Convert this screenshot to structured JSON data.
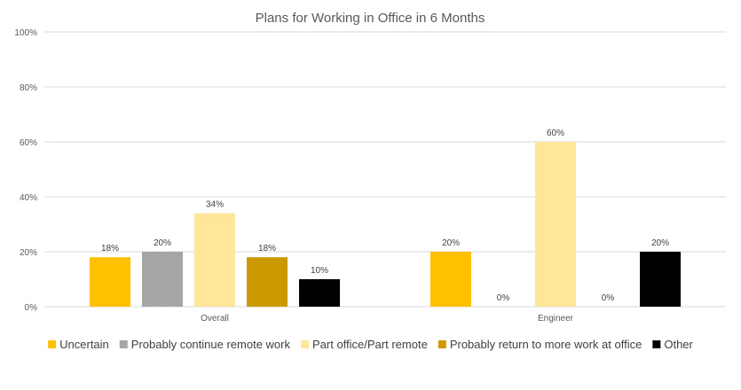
{
  "chart_data": {
    "type": "bar",
    "title": "Plans for Working in Office in 6 Months",
    "categories": [
      "Overall",
      "Engineer"
    ],
    "series": [
      {
        "name": "Uncertain",
        "values": [
          18,
          20
        ],
        "labels": [
          "18%",
          "20%"
        ],
        "color": "#FFC000",
        "pattern": "solid"
      },
      {
        "name": "Probably continue remote work",
        "values": [
          20,
          0
        ],
        "labels": [
          "20%",
          "0%"
        ],
        "color": "#A5A5A5",
        "pattern": "dots"
      },
      {
        "name": "Part office/Part remote",
        "values": [
          34,
          60
        ],
        "labels": [
          "34%",
          "60%"
        ],
        "color": "#FFE699",
        "pattern": "solid"
      },
      {
        "name": "Probably return to more work at office",
        "values": [
          18,
          0
        ],
        "labels": [
          "18%",
          "0%"
        ],
        "color": "#CC9900",
        "pattern": "solid"
      },
      {
        "name": "Other",
        "values": [
          10,
          20
        ],
        "labels": [
          "10%",
          "20%"
        ],
        "color": "#000000",
        "pattern": "solid"
      }
    ],
    "ylim": [
      0,
      100
    ],
    "yticks": [
      0,
      20,
      40,
      60,
      80,
      100
    ],
    "ytick_labels": [
      "0%",
      "20%",
      "40%",
      "60%",
      "80%",
      "100%"
    ],
    "grid": true,
    "legend_position": "bottom"
  }
}
